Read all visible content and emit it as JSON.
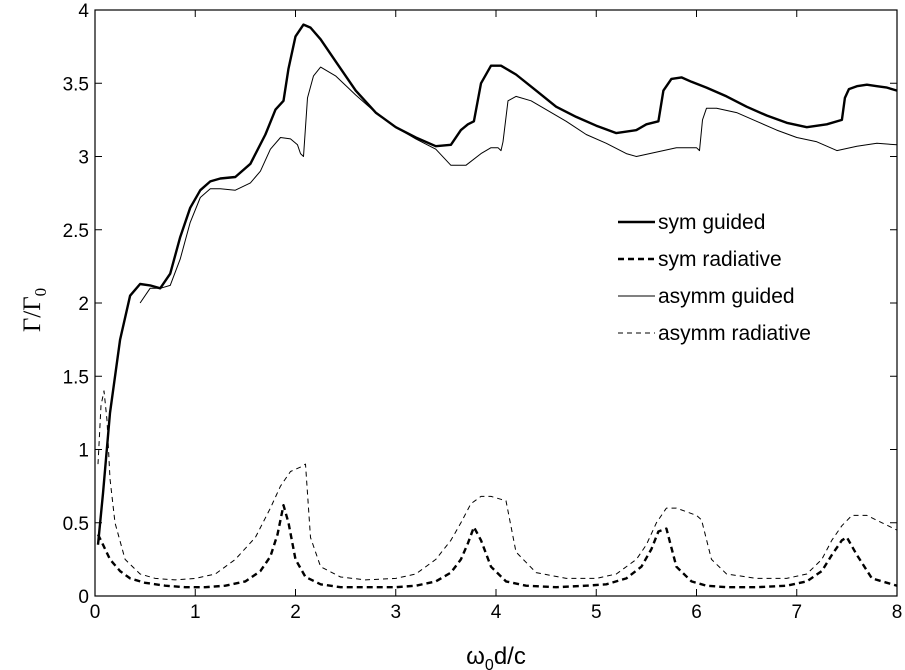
{
  "chart_data": {
    "type": "line",
    "xlabel": {
      "main": "ω",
      "sub": "0",
      "rest": "d/c"
    },
    "ylabel": {
      "main": "Γ/Γ",
      "sub": "0"
    },
    "xlim": [
      0,
      8
    ],
    "ylim": [
      0,
      4
    ],
    "xticks": [
      "0",
      "1",
      "2",
      "3",
      "4",
      "5",
      "6",
      "7",
      "8"
    ],
    "yticks": [
      "0",
      "0.5",
      "1",
      "1.5",
      "2",
      "2.5",
      "3",
      "3.5",
      "4"
    ],
    "grid": false,
    "legend_position": "right-middle",
    "series": [
      {
        "name": "sym guided",
        "style": "solid-thick",
        "x": [
          0.03,
          0.08,
          0.15,
          0.25,
          0.35,
          0.45,
          0.55,
          0.65,
          0.75,
          0.85,
          0.95,
          1.05,
          1.15,
          1.25,
          1.4,
          1.55,
          1.7,
          1.8,
          1.88,
          1.93,
          2.0,
          2.08,
          2.15,
          2.25,
          2.4,
          2.6,
          2.8,
          3.0,
          3.2,
          3.4,
          3.55,
          3.65,
          3.72,
          3.78,
          3.85,
          3.95,
          4.05,
          4.2,
          4.4,
          4.6,
          4.8,
          5.0,
          5.2,
          5.4,
          5.5,
          5.62,
          5.67,
          5.75,
          5.85,
          5.95,
          6.1,
          6.3,
          6.5,
          6.7,
          6.9,
          7.1,
          7.3,
          7.45,
          7.48,
          7.52,
          7.6,
          7.7,
          7.8,
          7.9,
          8.0
        ],
        "y": [
          0.35,
          0.7,
          1.25,
          1.75,
          2.05,
          2.13,
          2.12,
          2.1,
          2.2,
          2.45,
          2.65,
          2.77,
          2.83,
          2.85,
          2.86,
          2.95,
          3.15,
          3.32,
          3.38,
          3.6,
          3.82,
          3.9,
          3.88,
          3.8,
          3.65,
          3.45,
          3.3,
          3.2,
          3.13,
          3.07,
          3.08,
          3.18,
          3.22,
          3.24,
          3.5,
          3.62,
          3.62,
          3.56,
          3.45,
          3.34,
          3.27,
          3.21,
          3.16,
          3.18,
          3.22,
          3.24,
          3.45,
          3.53,
          3.54,
          3.51,
          3.47,
          3.41,
          3.34,
          3.28,
          3.23,
          3.2,
          3.22,
          3.25,
          3.4,
          3.46,
          3.48,
          3.49,
          3.48,
          3.47,
          3.45
        ]
      },
      {
        "name": "sym radiative",
        "style": "dashed-thick",
        "x": [
          0.03,
          0.08,
          0.15,
          0.25,
          0.35,
          0.5,
          0.7,
          0.9,
          1.1,
          1.3,
          1.5,
          1.65,
          1.75,
          1.82,
          1.88,
          1.93,
          2.0,
          2.1,
          2.25,
          2.45,
          2.7,
          3.0,
          3.2,
          3.4,
          3.55,
          3.65,
          3.72,
          3.78,
          3.85,
          3.95,
          4.1,
          4.3,
          4.6,
          4.9,
          5.1,
          5.3,
          5.45,
          5.55,
          5.62,
          5.7,
          5.8,
          5.95,
          6.1,
          6.3,
          6.6,
          6.9,
          7.1,
          7.25,
          7.35,
          7.45,
          7.5,
          7.6,
          7.75,
          7.9,
          8.0
        ],
        "y": [
          0.42,
          0.35,
          0.25,
          0.17,
          0.12,
          0.09,
          0.07,
          0.06,
          0.06,
          0.07,
          0.1,
          0.17,
          0.27,
          0.42,
          0.62,
          0.5,
          0.25,
          0.13,
          0.08,
          0.06,
          0.06,
          0.06,
          0.07,
          0.1,
          0.16,
          0.25,
          0.36,
          0.47,
          0.38,
          0.2,
          0.1,
          0.07,
          0.06,
          0.07,
          0.08,
          0.12,
          0.2,
          0.32,
          0.44,
          0.46,
          0.2,
          0.1,
          0.07,
          0.06,
          0.06,
          0.07,
          0.1,
          0.17,
          0.28,
          0.38,
          0.4,
          0.28,
          0.12,
          0.09,
          0.07
        ]
      },
      {
        "name": "asymm guided",
        "style": "solid-thin",
        "x": [
          0.45,
          0.55,
          0.65,
          0.75,
          0.85,
          0.95,
          1.05,
          1.15,
          1.25,
          1.4,
          1.55,
          1.65,
          1.75,
          1.85,
          1.95,
          2.02,
          2.05,
          2.08,
          2.12,
          2.18,
          2.25,
          2.4,
          2.6,
          2.8,
          3.0,
          3.2,
          3.4,
          3.55,
          3.7,
          3.85,
          3.95,
          4.02,
          4.05,
          4.07,
          4.12,
          4.2,
          4.35,
          4.5,
          4.7,
          4.9,
          5.1,
          5.3,
          5.4,
          5.6,
          5.8,
          6.0,
          6.03,
          6.06,
          6.1,
          6.2,
          6.4,
          6.6,
          6.8,
          7.0,
          7.2,
          7.4,
          7.6,
          7.8,
          8.0
        ],
        "y": [
          2.0,
          2.1,
          2.1,
          2.12,
          2.3,
          2.55,
          2.72,
          2.78,
          2.78,
          2.77,
          2.82,
          2.9,
          3.05,
          3.13,
          3.12,
          3.08,
          3.02,
          3.0,
          3.4,
          3.55,
          3.61,
          3.55,
          3.42,
          3.3,
          3.2,
          3.12,
          3.05,
          2.94,
          2.94,
          3.02,
          3.06,
          3.06,
          3.04,
          3.1,
          3.38,
          3.41,
          3.38,
          3.32,
          3.24,
          3.15,
          3.09,
          3.02,
          3.0,
          3.03,
          3.06,
          3.06,
          3.04,
          3.25,
          3.33,
          3.33,
          3.3,
          3.24,
          3.18,
          3.13,
          3.1,
          3.04,
          3.07,
          3.09,
          3.08
        ]
      },
      {
        "name": "asymm radiative",
        "style": "dashed-thin",
        "x": [
          0.03,
          0.06,
          0.09,
          0.12,
          0.15,
          0.2,
          0.3,
          0.45,
          0.6,
          0.8,
          1.0,
          1.2,
          1.4,
          1.6,
          1.75,
          1.85,
          1.95,
          2.05,
          2.1,
          2.15,
          2.25,
          2.45,
          2.7,
          3.0,
          3.2,
          3.4,
          3.55,
          3.65,
          3.75,
          3.85,
          3.95,
          4.05,
          4.1,
          4.2,
          4.4,
          4.7,
          5.0,
          5.2,
          5.4,
          5.5,
          5.6,
          5.7,
          5.8,
          6.0,
          6.05,
          6.15,
          6.3,
          6.6,
          6.9,
          7.1,
          7.25,
          7.35,
          7.45,
          7.55,
          7.7,
          7.85,
          8.0
        ],
        "y": [
          0.9,
          1.3,
          1.4,
          1.2,
          0.8,
          0.5,
          0.25,
          0.15,
          0.12,
          0.11,
          0.12,
          0.15,
          0.25,
          0.4,
          0.6,
          0.75,
          0.85,
          0.88,
          0.9,
          0.4,
          0.2,
          0.13,
          0.11,
          0.12,
          0.15,
          0.25,
          0.38,
          0.5,
          0.63,
          0.68,
          0.68,
          0.66,
          0.65,
          0.3,
          0.16,
          0.12,
          0.12,
          0.15,
          0.25,
          0.35,
          0.5,
          0.6,
          0.6,
          0.55,
          0.52,
          0.25,
          0.15,
          0.12,
          0.12,
          0.15,
          0.25,
          0.38,
          0.48,
          0.55,
          0.55,
          0.5,
          0.45
        ]
      }
    ]
  }
}
